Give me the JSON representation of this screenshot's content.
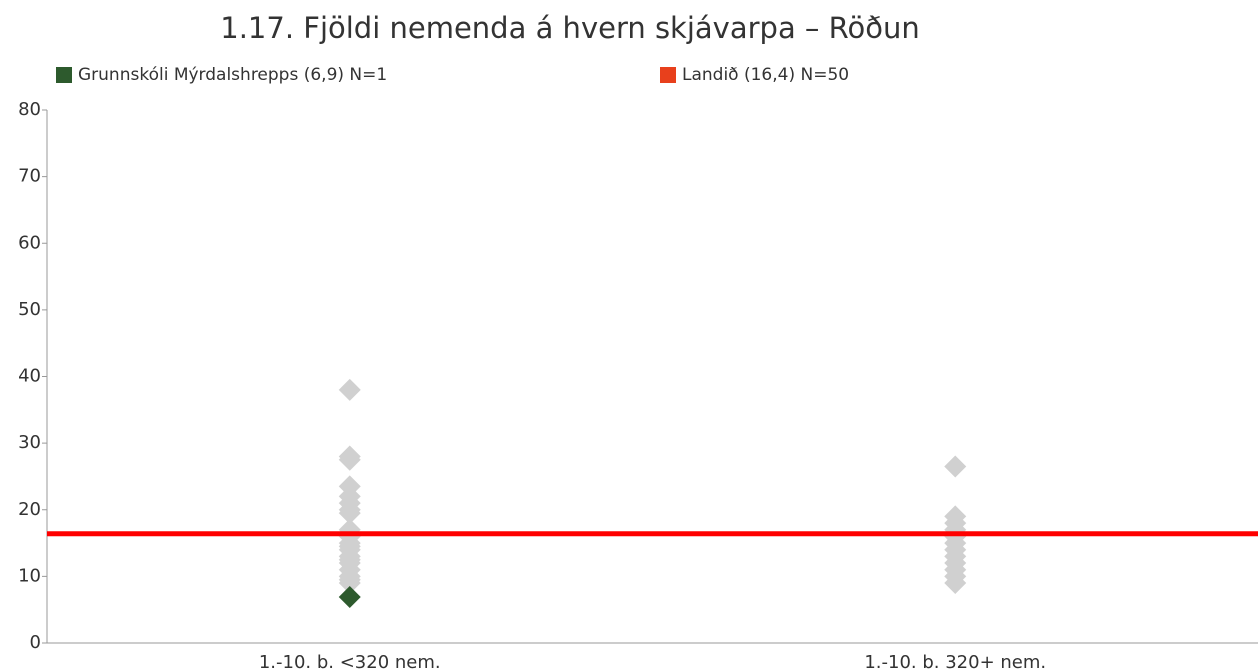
{
  "chart_data": {
    "type": "scatter",
    "title": "1.17. Fjöldi nemenda á hvern skjávarpa – Röðun",
    "categories": [
      "1.-10. b. <320 nem.",
      "1.-10. b. 320+ nem."
    ],
    "ylim": [
      0,
      80
    ],
    "yticks": [
      0,
      10,
      20,
      30,
      40,
      50,
      60,
      70,
      80
    ],
    "groups": {
      "color": "#d0d0d0",
      "values": [
        [
          38,
          28,
          27.5,
          23.5,
          22,
          21,
          20,
          19.5,
          17,
          16,
          15,
          14.5,
          14,
          13,
          12.5,
          12,
          11,
          10,
          9.5,
          9
        ],
        [
          26.5,
          19,
          18,
          17,
          16,
          15,
          14,
          13,
          12,
          11,
          10,
          9
        ]
      ]
    },
    "series": [
      {
        "name": "Grunnskóli Mýrdalshrepps (6,9) N=1",
        "color": "#2d5a2d",
        "values": [
          6.9,
          null
        ]
      }
    ],
    "reference_line": {
      "name": "Landið (16,4) N=50",
      "color": "#e8401c",
      "line_color": "#ff0000",
      "value": 16.4
    }
  }
}
